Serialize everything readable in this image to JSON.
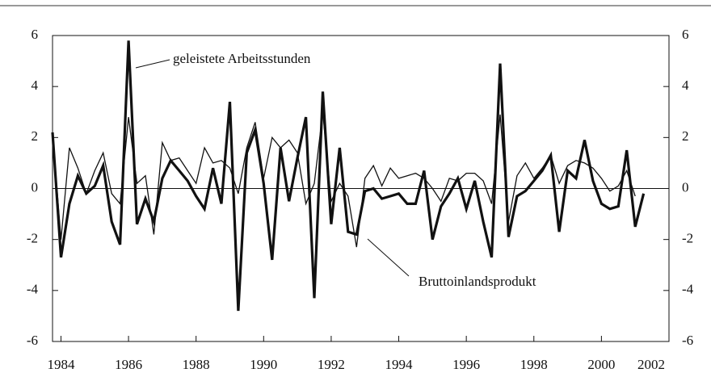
{
  "chart_data": {
    "type": "line",
    "annotations": [
      "geleistete Arbeitsstunden",
      "Bruttoinlandsprodukt"
    ],
    "x": [
      1983.75,
      1984,
      1984.25,
      1984.5,
      1984.75,
      1985,
      1985.25,
      1985.5,
      1985.75,
      1986,
      1986.25,
      1986.5,
      1986.75,
      1987,
      1987.25,
      1987.5,
      1987.75,
      1988,
      1988.25,
      1988.5,
      1988.75,
      1989,
      1989.25,
      1989.5,
      1989.75,
      1990,
      1990.25,
      1990.5,
      1990.75,
      1991,
      1991.25,
      1991.5,
      1991.75,
      1992,
      1992.25,
      1992.5,
      1992.75,
      1993,
      1993.25,
      1993.5,
      1993.75,
      1994,
      1994.25,
      1994.5,
      1994.75,
      1995,
      1995.25,
      1995.5,
      1995.75,
      1996,
      1996.25,
      1996.5,
      1996.75,
      1997,
      1997.25,
      1997.5,
      1997.75,
      1998,
      1998.25,
      1998.5,
      1998.75,
      1999,
      1999.25,
      1999.5,
      1999.75,
      2000,
      2000.25,
      2000.5,
      2000.75,
      2001,
      2001.25
    ],
    "series": [
      {
        "name": "Bruttoinlandsprodukt",
        "color": "#111111",
        "width": 3.2,
        "values": [
          2.2,
          -2.7,
          -0.6,
          0.5,
          -0.2,
          0.1,
          0.9,
          -1.3,
          -2.2,
          5.8,
          -1.4,
          -0.4,
          -1.3,
          0.4,
          1.1,
          0.7,
          0.3,
          -0.3,
          -0.8,
          0.8,
          -0.6,
          3.4,
          -4.8,
          1.4,
          2.3,
          0.2,
          -2.8,
          1.6,
          -0.5,
          1.2,
          2.8,
          -4.3,
          3.8,
          -1.4,
          1.6,
          -1.7,
          -1.8,
          -0.1,
          0.0,
          -0.4,
          -0.3,
          -0.2,
          -0.6,
          -0.6,
          0.7,
          -2.0,
          -0.7,
          -0.2,
          0.4,
          -0.8,
          0.3,
          -1.3,
          -2.7,
          4.9,
          -1.9,
          -0.3,
          -0.1,
          0.3,
          0.7,
          1.3,
          -1.7,
          0.7,
          0.4,
          1.9,
          0.3,
          -0.6,
          -0.8,
          -0.7,
          1.5,
          -1.5,
          -0.2
        ]
      },
      {
        "name": "geleistete Arbeitsstunden",
        "color": "#111111",
        "width": 1.3,
        "values": [
          2.2,
          -2.0,
          1.6,
          0.8,
          -0.2,
          0.7,
          1.4,
          -0.2,
          -0.6,
          2.8,
          0.2,
          0.5,
          -1.8,
          1.8,
          1.1,
          1.2,
          0.7,
          0.2,
          1.6,
          1.0,
          1.1,
          0.8,
          -0.2,
          1.6,
          2.6,
          0.4,
          2.0,
          1.6,
          1.9,
          1.4,
          -0.6,
          0.2,
          3.0,
          -0.5,
          0.2,
          -0.3,
          -2.3,
          0.4,
          0.9,
          0.1,
          0.8,
          0.4,
          0.5,
          0.6,
          0.4,
          0.0,
          -0.5,
          0.4,
          0.3,
          0.6,
          0.6,
          0.3,
          -0.6,
          2.9,
          -1.3,
          0.5,
          1.0,
          0.4,
          0.8,
          1.3,
          0.2,
          0.9,
          1.1,
          1.0,
          0.8,
          0.4,
          -0.1,
          0.1,
          0.7,
          -0.3,
          null
        ]
      }
    ],
    "xlim": [
      1983.75,
      2002
    ],
    "xticks": [
      1984,
      1986,
      1988,
      1990,
      1992,
      1994,
      1996,
      1998,
      2000,
      2002
    ],
    "ylim": [
      -6,
      6
    ],
    "yticks": [
      -6,
      -4,
      -2,
      0,
      2,
      4,
      6
    ],
    "zero_line": true
  }
}
